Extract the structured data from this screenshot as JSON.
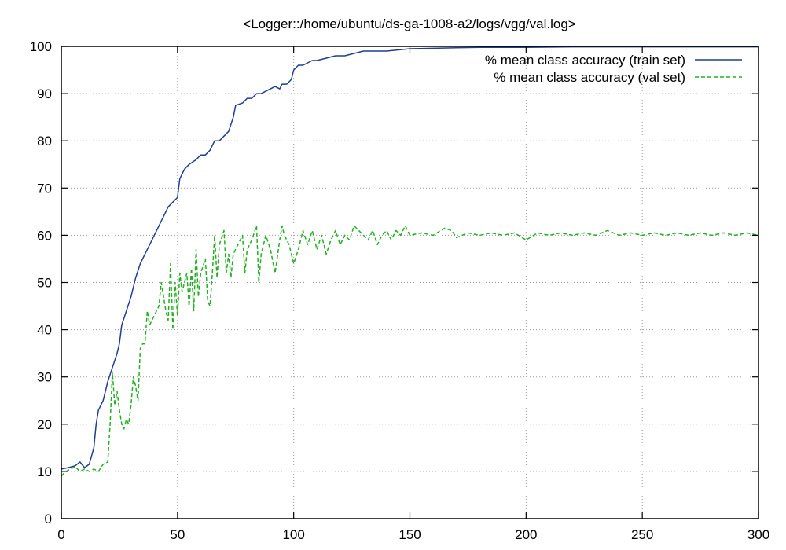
{
  "chart_data": {
    "type": "line",
    "title": "<Logger::/home/ubuntu/ds-ga-1008-a2/logs/vgg/val.log>",
    "xlabel": "",
    "ylabel": "",
    "xlim": [
      0,
      300
    ],
    "ylim": [
      0,
      100
    ],
    "xticks": [
      0,
      50,
      100,
      150,
      200,
      250,
      300
    ],
    "yticks": [
      0,
      10,
      20,
      30,
      40,
      50,
      60,
      70,
      80,
      90,
      100
    ],
    "xtick_labels": [
      "0",
      "50",
      "100",
      "150",
      "200",
      "250",
      "300"
    ],
    "ytick_labels": [
      "0",
      "10",
      "20",
      "30",
      "40",
      "50",
      "60",
      "70",
      "80",
      "90",
      "100"
    ],
    "grid": true,
    "legend_position": "top-right",
    "series": [
      {
        "name": "% mean class accuracy (train set)",
        "color": "#1f3f8f",
        "style": "solid",
        "points": [
          [
            0,
            10.5
          ],
          [
            3,
            10.8
          ],
          [
            6,
            11.2
          ],
          [
            8,
            12
          ],
          [
            10,
            10.8
          ],
          [
            12,
            11.5
          ],
          [
            14,
            15
          ],
          [
            15,
            20
          ],
          [
            16,
            23
          ],
          [
            18,
            25
          ],
          [
            20,
            29
          ],
          [
            22,
            32
          ],
          [
            24,
            35
          ],
          [
            25,
            37
          ],
          [
            26,
            41
          ],
          [
            28,
            44
          ],
          [
            30,
            47
          ],
          [
            32,
            51
          ],
          [
            34,
            54
          ],
          [
            36,
            56
          ],
          [
            38,
            58
          ],
          [
            40,
            60
          ],
          [
            42,
            62
          ],
          [
            44,
            64
          ],
          [
            46,
            66
          ],
          [
            48,
            67
          ],
          [
            50,
            68
          ],
          [
            51,
            72
          ],
          [
            53,
            74
          ],
          [
            55,
            75
          ],
          [
            58,
            76
          ],
          [
            60,
            77
          ],
          [
            62,
            77
          ],
          [
            64,
            78
          ],
          [
            66,
            80
          ],
          [
            68,
            80
          ],
          [
            70,
            81
          ],
          [
            72,
            82
          ],
          [
            74,
            85
          ],
          [
            75,
            87.5
          ],
          [
            78,
            88
          ],
          [
            80,
            89
          ],
          [
            82,
            89
          ],
          [
            84,
            90
          ],
          [
            86,
            90
          ],
          [
            88,
            90.5
          ],
          [
            90,
            91
          ],
          [
            92,
            91.5
          ],
          [
            94,
            91
          ],
          [
            95,
            92
          ],
          [
            97,
            92
          ],
          [
            99,
            93
          ],
          [
            100,
            95
          ],
          [
            102,
            96
          ],
          [
            104,
            96
          ],
          [
            106,
            96.5
          ],
          [
            108,
            97
          ],
          [
            110,
            97
          ],
          [
            114,
            97.5
          ],
          [
            118,
            98
          ],
          [
            122,
            98
          ],
          [
            126,
            98.5
          ],
          [
            130,
            99
          ],
          [
            140,
            99
          ],
          [
            150,
            99.5
          ],
          [
            160,
            99.6
          ],
          [
            170,
            99.7
          ],
          [
            180,
            99.8
          ],
          [
            200,
            99.8
          ],
          [
            220,
            99.9
          ],
          [
            250,
            99.9
          ],
          [
            280,
            99.9
          ],
          [
            300,
            99.9
          ]
        ]
      },
      {
        "name": "% mean class accuracy (val set)",
        "color": "#22b022",
        "style": "dashed",
        "points": [
          [
            0,
            9
          ],
          [
            2,
            10
          ],
          [
            4,
            10.5
          ],
          [
            6,
            11
          ],
          [
            8,
            10
          ],
          [
            10,
            10.5
          ],
          [
            12,
            10
          ],
          [
            14,
            10.5
          ],
          [
            16,
            10
          ],
          [
            18,
            11.5
          ],
          [
            20,
            12
          ],
          [
            21,
            20
          ],
          [
            22,
            31
          ],
          [
            23,
            24
          ],
          [
            24,
            27
          ],
          [
            25,
            23
          ],
          [
            26,
            20
          ],
          [
            27,
            19
          ],
          [
            28,
            21
          ],
          [
            29,
            20
          ],
          [
            30,
            24
          ],
          [
            31,
            30
          ],
          [
            32,
            28
          ],
          [
            33,
            25
          ],
          [
            34,
            36
          ],
          [
            35,
            37
          ],
          [
            36,
            37
          ],
          [
            37,
            44
          ],
          [
            38,
            41
          ],
          [
            40,
            43
          ],
          [
            42,
            45
          ],
          [
            43,
            50
          ],
          [
            44,
            47
          ],
          [
            45,
            44
          ],
          [
            46,
            42
          ],
          [
            47,
            54
          ],
          [
            48,
            40
          ],
          [
            49,
            50
          ],
          [
            50,
            43
          ],
          [
            51,
            52
          ],
          [
            52,
            48
          ],
          [
            53,
            50
          ],
          [
            54,
            52
          ],
          [
            55,
            45
          ],
          [
            56,
            53
          ],
          [
            57,
            44
          ],
          [
            58,
            57
          ],
          [
            59,
            47
          ],
          [
            60,
            52
          ],
          [
            62,
            55
          ],
          [
            63,
            46
          ],
          [
            64,
            45
          ],
          [
            65,
            52
          ],
          [
            66,
            60
          ],
          [
            67,
            51
          ],
          [
            68,
            58
          ],
          [
            70,
            61
          ],
          [
            71,
            52
          ],
          [
            72,
            56
          ],
          [
            73,
            51
          ],
          [
            74,
            56
          ],
          [
            76,
            58
          ],
          [
            78,
            60
          ],
          [
            79,
            52
          ],
          [
            80,
            57
          ],
          [
            82,
            59
          ],
          [
            84,
            62
          ],
          [
            85,
            50
          ],
          [
            86,
            56
          ],
          [
            88,
            60
          ],
          [
            90,
            57
          ],
          [
            92,
            52
          ],
          [
            94,
            59
          ],
          [
            95,
            62
          ],
          [
            96,
            60
          ],
          [
            98,
            58
          ],
          [
            100,
            54
          ],
          [
            102,
            57
          ],
          [
            104,
            61
          ],
          [
            106,
            58
          ],
          [
            108,
            61
          ],
          [
            110,
            57
          ],
          [
            112,
            60
          ],
          [
            114,
            56
          ],
          [
            116,
            59
          ],
          [
            118,
            61
          ],
          [
            120,
            58
          ],
          [
            122,
            60
          ],
          [
            124,
            59
          ],
          [
            126,
            62
          ],
          [
            128,
            61
          ],
          [
            130,
            60
          ],
          [
            132,
            59
          ],
          [
            134,
            61
          ],
          [
            136,
            58
          ],
          [
            138,
            60
          ],
          [
            140,
            61
          ],
          [
            142,
            59
          ],
          [
            144,
            61
          ],
          [
            146,
            60
          ],
          [
            148,
            62
          ],
          [
            150,
            60
          ],
          [
            155,
            60.5
          ],
          [
            160,
            60
          ],
          [
            165,
            61.5
          ],
          [
            168,
            61
          ],
          [
            170,
            59.5
          ],
          [
            175,
            60.5
          ],
          [
            180,
            60
          ],
          [
            185,
            60.5
          ],
          [
            190,
            60
          ],
          [
            195,
            60.5
          ],
          [
            200,
            59
          ],
          [
            205,
            60.5
          ],
          [
            210,
            60
          ],
          [
            215,
            60.5
          ],
          [
            220,
            60
          ],
          [
            225,
            60.5
          ],
          [
            230,
            60
          ],
          [
            235,
            61
          ],
          [
            240,
            60
          ],
          [
            245,
            60.5
          ],
          [
            250,
            60
          ],
          [
            255,
            60.5
          ],
          [
            260,
            60
          ],
          [
            265,
            60.5
          ],
          [
            270,
            60
          ],
          [
            275,
            60.5
          ],
          [
            280,
            60
          ],
          [
            285,
            60.5
          ],
          [
            290,
            60
          ],
          [
            295,
            60.5
          ],
          [
            300,
            60
          ]
        ]
      }
    ]
  }
}
